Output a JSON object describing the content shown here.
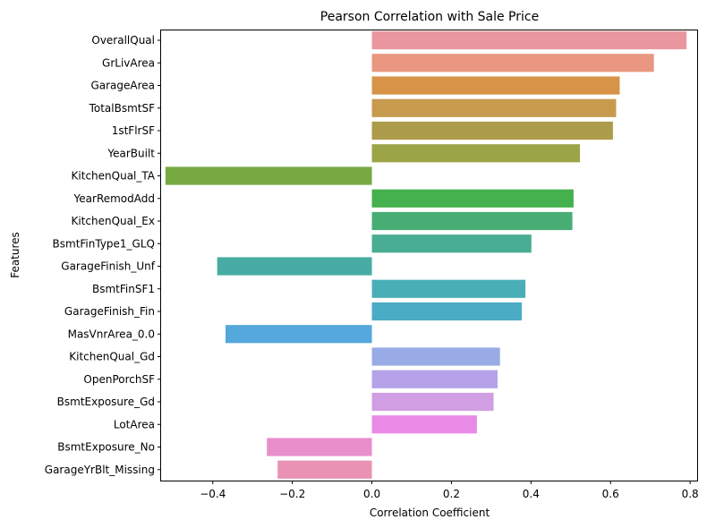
{
  "chart_data": {
    "type": "bar",
    "orientation": "horizontal",
    "title": "Pearson Correlation with Sale Price",
    "xlabel": "Correlation Coefficient",
    "ylabel": "Features",
    "xlim": [
      -0.53,
      0.82
    ],
    "xticks": [
      -0.4,
      -0.2,
      0.0,
      0.2,
      0.4,
      0.6,
      0.8
    ],
    "xtick_labels": [
      "−0.4",
      "−0.2",
      "0.0",
      "0.2",
      "0.4",
      "0.6",
      "0.8"
    ],
    "grid": false,
    "legend": "none",
    "categories": [
      "OverallQual",
      "GrLivArea",
      "GarageArea",
      "TotalBsmtSF",
      "1stFlrSF",
      "YearBuilt",
      "KitchenQual_TA",
      "YearRemodAdd",
      "KitchenQual_Ex",
      "BsmtFinType1_GLQ",
      "GarageFinish_Unf",
      "BsmtFinSF1",
      "GarageFinish_Fin",
      "MasVnrArea_0.0",
      "KitchenQual_Gd",
      "OpenPorchSF",
      "BsmtExposure_Gd",
      "LotArea",
      "BsmtExposure_No",
      "GarageYrBlt_Missing"
    ],
    "values": [
      0.791,
      0.709,
      0.623,
      0.614,
      0.606,
      0.523,
      -0.519,
      0.507,
      0.504,
      0.401,
      -0.389,
      0.386,
      0.377,
      -0.368,
      0.322,
      0.316,
      0.306,
      0.264,
      -0.264,
      -0.237
    ],
    "colors": [
      "#ea96a0",
      "#e99780",
      "#d79449",
      "#c79a4e",
      "#ad9c49",
      "#9ba446",
      "#76aa41",
      "#45b04e",
      "#48ad75",
      "#49ad93",
      "#47aca3",
      "#4aaeb6",
      "#4aacc5",
      "#55a8dc",
      "#98abe6",
      "#b5a2e9",
      "#d19ee3",
      "#e98ae6",
      "#e88ecb",
      "#e992b4"
    ]
  }
}
